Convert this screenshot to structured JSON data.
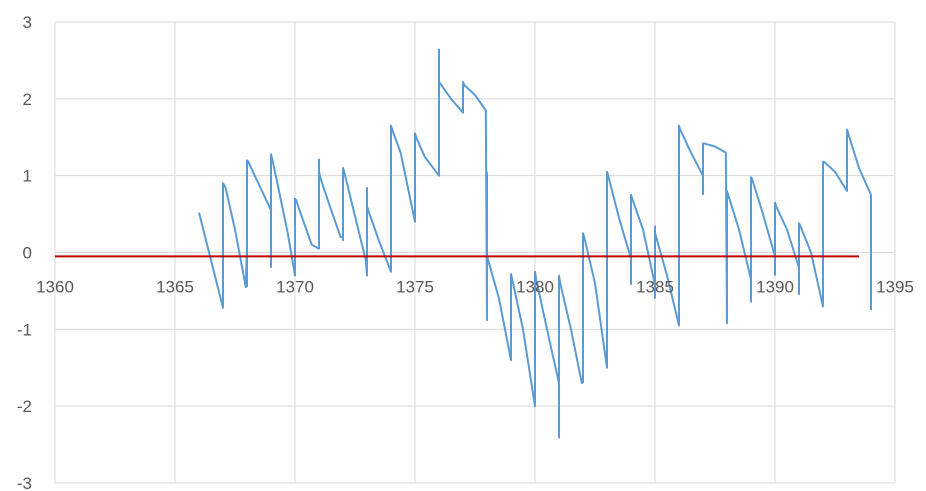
{
  "chart_data": {
    "type": "line",
    "title": "",
    "xlabel": "",
    "ylabel": "",
    "xlim": [
      1360,
      1395
    ],
    "ylim": [
      -3,
      3
    ],
    "x_ticks": [
      1360,
      1365,
      1370,
      1375,
      1380,
      1385,
      1390,
      1395
    ],
    "y_ticks": [
      -3,
      -2,
      -1,
      0,
      1,
      2,
      3
    ],
    "x_tick_labels": [
      "1360",
      "1365",
      "1370",
      "1375",
      "1380",
      "1385",
      "1390",
      "1395"
    ],
    "y_tick_labels": [
      "-3",
      "-2",
      "-1",
      "0",
      "1",
      "2",
      "3"
    ],
    "grid": true,
    "legend": "none",
    "colors": {
      "series": "#5b9bd5",
      "reference_line": "#c00000",
      "grid": "#d9d9d9",
      "axis_text": "#595959"
    },
    "reference_line": {
      "y": -0.05,
      "x_start": 1360,
      "x_end": 1393.5
    },
    "series": [
      {
        "color": "#5b9bd5",
        "x": [
          1366.0,
          1366.5,
          1367.0,
          1367.0,
          1367.1,
          1367.5,
          1367.95,
          1368.0,
          1368.0,
          1368.05,
          1368.4,
          1369.0,
          1369.0,
          1369.05,
          1369.3,
          1369.7,
          1370.0,
          1370.0,
          1370.05,
          1370.3,
          1370.7,
          1371.0,
          1371.0,
          1371.05,
          1371.4,
          1371.9,
          1372.0,
          1372.0,
          1372.05,
          1372.4,
          1372.95,
          1373.0,
          1373.0,
          1373.05,
          1373.5,
          1374.0,
          1374.0,
          1374.05,
          1374.4,
          1375.0,
          1375.0,
          1375.05,
          1375.4,
          1376.0,
          1376.0,
          1376.05,
          1376.5,
          1377.0,
          1377.0,
          1377.05,
          1377.5,
          1377.95,
          1378.0,
          1378.0,
          1378.05,
          1378.5,
          1379.0,
          1379.0,
          1379.05,
          1379.5,
          1380.0,
          1380.0,
          1380.05,
          1380.5,
          1381.0,
          1381.0,
          1381.05,
          1381.5,
          1381.95,
          1382.0,
          1382.0,
          1382.05,
          1382.5,
          1383.0,
          1383.0,
          1383.05,
          1383.5,
          1384.0,
          1384.0,
          1384.05,
          1384.5,
          1385.0,
          1385.0,
          1385.05,
          1385.5,
          1386.0,
          1386.0,
          1386.05,
          1386.5,
          1387.0,
          1387.0,
          1387.05,
          1387.5,
          1387.95,
          1388.0,
          1388.0,
          1388.05,
          1388.5,
          1389.0,
          1389.0,
          1389.05,
          1389.5,
          1390.0,
          1390.0,
          1390.05,
          1390.5,
          1391.0,
          1391.0,
          1391.05,
          1391.5,
          1392.0,
          1392.0,
          1392.05,
          1392.5,
          1393.0,
          1393.0,
          1393.05,
          1393.5,
          1394.0
        ],
        "values": [
          0.52,
          -0.1,
          -0.72,
          0.9,
          0.85,
          0.3,
          -0.45,
          0.1,
          1.2,
          1.18,
          0.95,
          0.55,
          1.28,
          1.22,
          0.85,
          0.25,
          -0.3,
          0.7,
          0.68,
          0.45,
          0.1,
          0.05,
          1.05,
          0.98,
          0.65,
          0.2,
          0.2,
          1.1,
          1.05,
          0.6,
          -0.1,
          -0.3,
          0.6,
          0.55,
          0.15,
          -0.25,
          1.65,
          1.6,
          1.3,
          0.4,
          1.55,
          1.5,
          1.25,
          1.0,
          2.22,
          2.2,
          2.0,
          1.82,
          2.22,
          2.18,
          2.05,
          1.85,
          -0.88,
          -0.05,
          -0.1,
          -0.6,
          -1.4,
          -0.28,
          -0.35,
          -1.0,
          -2.0,
          -0.25,
          -0.35,
          -1.0,
          -1.7,
          -0.3,
          -0.4,
          -1.0,
          -1.7,
          -1.68,
          0.25,
          0.2,
          -0.4,
          -1.5,
          1.05,
          1.0,
          0.45,
          -0.08,
          0.75,
          0.7,
          0.3,
          -0.42,
          0.25,
          0.2,
          -0.3,
          -0.95,
          1.65,
          1.6,
          1.3,
          1.0,
          1.42,
          1.42,
          1.38,
          1.3,
          -0.92,
          0.8,
          0.75,
          0.3,
          -0.35,
          0.98,
          0.95,
          0.5,
          -0.05,
          0.65,
          0.6,
          0.3,
          -0.2,
          0.38,
          0.35,
          0.0,
          -0.7,
          1.18,
          1.18,
          1.05,
          0.8,
          1.6,
          1.55,
          1.1,
          0.75
        ]
      }
    ],
    "spikes": [
      {
        "x": 1367.0,
        "low": -0.72,
        "high": 0.9
      },
      {
        "x": 1368.0,
        "low": -0.45,
        "high": 1.2
      },
      {
        "x": 1369.0,
        "low": -0.2,
        "high": 1.28
      },
      {
        "x": 1370.0,
        "low": -0.3,
        "high": 0.7
      },
      {
        "x": 1371.0,
        "low": 0.05,
        "high": 1.22
      },
      {
        "x": 1372.0,
        "low": 0.15,
        "high": 1.1
      },
      {
        "x": 1373.0,
        "low": -0.3,
        "high": 0.85
      },
      {
        "x": 1374.0,
        "low": -0.25,
        "high": 1.65
      },
      {
        "x": 1375.0,
        "low": 0.4,
        "high": 1.55
      },
      {
        "x": 1376.0,
        "low": 1.0,
        "high": 2.65
      },
      {
        "x": 1377.0,
        "low": 1.82,
        "high": 2.22
      },
      {
        "x": 1378.0,
        "low": -0.88,
        "high": 1.05
      },
      {
        "x": 1379.0,
        "low": -1.4,
        "high": -0.28
      },
      {
        "x": 1380.0,
        "low": -2.0,
        "high": -0.25
      },
      {
        "x": 1381.0,
        "low": -2.42,
        "high": -0.3
      },
      {
        "x": 1382.0,
        "low": -1.7,
        "high": 0.25
      },
      {
        "x": 1383.0,
        "low": -1.5,
        "high": 1.05
      },
      {
        "x": 1384.0,
        "low": -0.42,
        "high": 0.75
      },
      {
        "x": 1385.0,
        "low": -0.6,
        "high": 0.35
      },
      {
        "x": 1386.0,
        "low": -0.95,
        "high": 1.65
      },
      {
        "x": 1387.0,
        "low": 0.75,
        "high": 1.42
      },
      {
        "x": 1388.0,
        "low": -0.92,
        "high": 0.8
      },
      {
        "x": 1389.0,
        "low": -0.65,
        "high": 0.98
      },
      {
        "x": 1390.0,
        "low": -0.3,
        "high": 0.65
      },
      {
        "x": 1391.0,
        "low": -0.55,
        "high": 0.38
      },
      {
        "x": 1392.0,
        "low": -0.7,
        "high": 1.18
      },
      {
        "x": 1393.0,
        "low": 0.8,
        "high": 1.6
      },
      {
        "x": 1394.0,
        "low": -0.75,
        "high": 0.75
      }
    ]
  }
}
